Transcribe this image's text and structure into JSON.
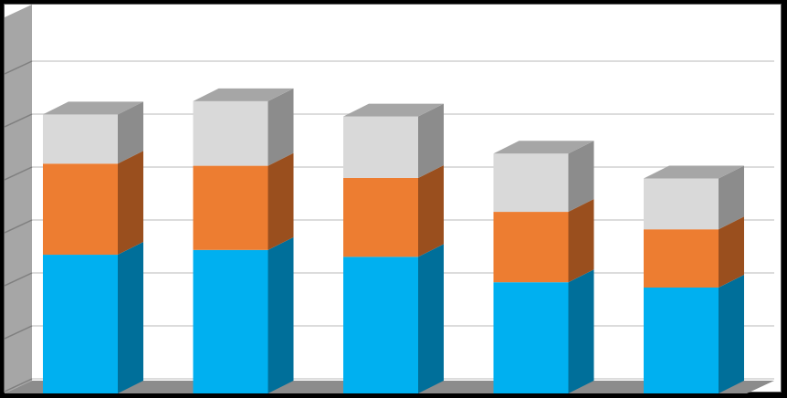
{
  "chart_data": {
    "type": "bar",
    "stacked": true,
    "three_d": true,
    "title": "",
    "xlabel": "",
    "ylabel": "",
    "ylim": [
      0,
      6
    ],
    "grid": true,
    "legend": "none",
    "categories": [
      "",
      "",
      "",
      "",
      ""
    ],
    "series": [
      {
        "color": "#00b0f0",
        "side_color": "#006f9a",
        "values": [
          2.62,
          2.71,
          2.58,
          2.1,
          2.0
        ]
      },
      {
        "color": "#ed7d31",
        "side_color": "#9a4f1e",
        "values": [
          1.72,
          1.59,
          1.49,
          1.33,
          1.1
        ]
      },
      {
        "color": "#d9d9d9",
        "side_color": "#8c8c8c",
        "values": [
          0.93,
          1.22,
          1.16,
          1.1,
          0.96
        ]
      }
    ]
  }
}
